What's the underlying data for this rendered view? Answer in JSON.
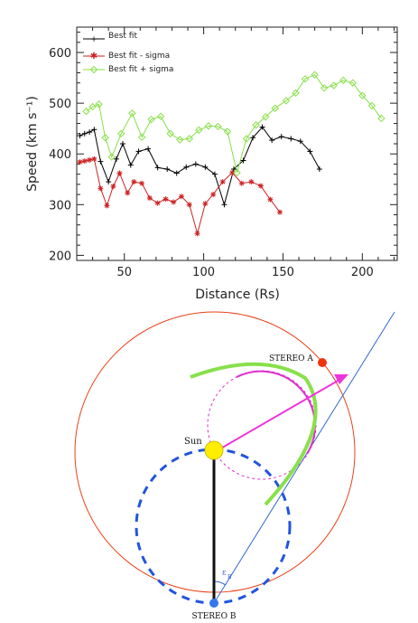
{
  "chart_data": {
    "type": "line",
    "title": "",
    "xlabel": "Distance (Rs)",
    "ylabel": "Speed (km s⁻¹)",
    "xlim": [
      20,
      222
    ],
    "ylim": [
      190,
      650
    ],
    "xticks": [
      50,
      100,
      150,
      200
    ],
    "yticks": [
      200,
      300,
      400,
      500,
      600
    ],
    "legend_position": "top-left",
    "series": [
      {
        "name": "Best fit",
        "color": "#000000",
        "marker": "plus",
        "x": [
          22,
          25,
          28,
          31,
          35,
          40,
          45,
          49,
          54,
          59,
          65,
          71,
          77,
          83,
          89,
          95,
          101,
          107,
          113,
          119,
          125,
          131,
          137,
          143,
          149,
          155,
          161,
          167,
          173
        ],
        "y": [
          436,
          440,
          443,
          448,
          385,
          345,
          390,
          420,
          378,
          405,
          410,
          373,
          370,
          362,
          374,
          380,
          374,
          360,
          300,
          370,
          387,
          432,
          453,
          427,
          434,
          430,
          425,
          405,
          370
        ]
      },
      {
        "name": "Best fit - sigma",
        "color": "#cc2222",
        "marker": "asterisk",
        "x": [
          22,
          25,
          28,
          31,
          35,
          39,
          43,
          47,
          52,
          56,
          61,
          66,
          71,
          76,
          81,
          86,
          91,
          96,
          101,
          106,
          112,
          118,
          124,
          130,
          136,
          142,
          148
        ],
        "y": [
          384,
          386,
          388,
          390,
          332,
          298,
          336,
          362,
          323,
          345,
          342,
          313,
          303,
          311,
          305,
          316,
          300,
          243,
          302,
          320,
          345,
          363,
          342,
          345,
          337,
          310,
          285
        ]
      },
      {
        "name": "Best fit + sigma",
        "color": "#88e04a",
        "marker": "diamond",
        "x": [
          26,
          30,
          34,
          38,
          42,
          48,
          55,
          61,
          67,
          73,
          79,
          85,
          91,
          97,
          103,
          109,
          115,
          121,
          127,
          133,
          139,
          145,
          152,
          158,
          164,
          170,
          176,
          182,
          188,
          194,
          200,
          206,
          212
        ],
        "y": [
          484,
          493,
          498,
          432,
          394,
          440,
          480,
          433,
          468,
          474,
          440,
          428,
          430,
          447,
          455,
          454,
          444,
          363,
          430,
          457,
          473,
          490,
          505,
          520,
          548,
          556,
          530,
          535,
          545,
          540,
          515,
          495,
          470
        ]
      }
    ]
  },
  "diagram": {
    "labels": {
      "sun": "Sun",
      "stereo_a": "STEREO A",
      "stereo_b": "STEREO B",
      "epsilon": "ε"
    },
    "colors": {
      "orbit": "#e8441a",
      "stereo_a": "#ee3311",
      "stereo_b": "#3377ee",
      "sun": "#ffee00",
      "cme_front": "#88e04a",
      "cme_circle": "#dd33cc",
      "arrow": "#ee33dd",
      "dashed_circle": "#2255dd",
      "line_of_sight": "#3366cc"
    }
  }
}
